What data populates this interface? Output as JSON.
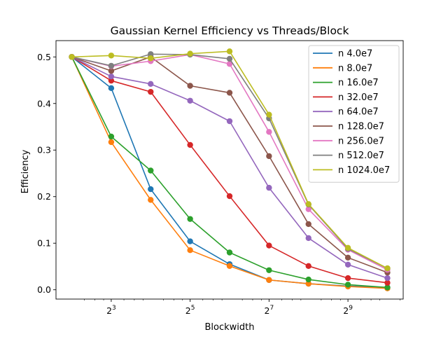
{
  "chart_data": {
    "type": "line",
    "title": "Gaussian Kernel Efficiency vs Threads/Block",
    "xlabel": "Blockwidth",
    "ylabel": "Efficiency",
    "x_scale": "log2",
    "x": [
      4,
      8,
      16,
      32,
      64,
      128,
      256,
      512,
      1024
    ],
    "xlim": [
      4,
      1024
    ],
    "x_ticks": [
      {
        "base": "2",
        "exp": "3",
        "value": 8
      },
      {
        "base": "2",
        "exp": "5",
        "value": 32
      },
      {
        "base": "2",
        "exp": "7",
        "value": 128
      },
      {
        "base": "2",
        "exp": "9",
        "value": 512
      }
    ],
    "ylim": [
      -0.02,
      0.535
    ],
    "y_ticks": [
      {
        "label": "0.0",
        "value": 0.0
      },
      {
        "label": "0.1",
        "value": 0.1
      },
      {
        "label": "0.2",
        "value": 0.2
      },
      {
        "label": "0.3",
        "value": 0.3
      },
      {
        "label": "0.4",
        "value": 0.4
      },
      {
        "label": "0.5",
        "value": 0.5
      }
    ],
    "grid": false,
    "legend_position": "top-right",
    "series": [
      {
        "name": "n 4.0e7",
        "color": "#1f77b4",
        "values": [
          0.5,
          0.433,
          0.216,
          0.104,
          0.055,
          0.021,
          0.013,
          0.008,
          0.005
        ]
      },
      {
        "name": "n 8.0e7",
        "color": "#ff7f0e",
        "values": [
          0.5,
          0.317,
          0.193,
          0.085,
          0.051,
          0.021,
          0.013,
          0.007,
          0.003
        ]
      },
      {
        "name": "n 16.0e7",
        "color": "#2ca02c",
        "values": [
          0.5,
          0.329,
          0.256,
          0.152,
          0.08,
          0.042,
          0.022,
          0.011,
          0.005
        ]
      },
      {
        "name": "n 32.0e7",
        "color": "#d62728",
        "values": [
          0.5,
          0.449,
          0.425,
          0.311,
          0.201,
          0.095,
          0.051,
          0.025,
          0.015
        ]
      },
      {
        "name": "n 64.0e7",
        "color": "#9467bd",
        "values": [
          0.5,
          0.458,
          0.442,
          0.406,
          0.362,
          0.219,
          0.111,
          0.054,
          0.025
        ]
      },
      {
        "name": "n 128.0e7",
        "color": "#8c564b",
        "values": [
          0.5,
          0.47,
          0.5,
          0.438,
          0.423,
          0.287,
          0.141,
          0.069,
          0.037
        ]
      },
      {
        "name": "n 256.0e7",
        "color": "#e377c2",
        "values": [
          0.5,
          0.48,
          0.491,
          0.505,
          0.485,
          0.339,
          0.173,
          0.086,
          0.043
        ]
      },
      {
        "name": "n 512.0e7",
        "color": "#7f7f7f",
        "values": [
          0.5,
          0.481,
          0.506,
          0.505,
          0.496,
          0.368,
          0.183,
          0.088,
          0.046
        ]
      },
      {
        "name": "n 1024.0e7",
        "color": "#bcbd22",
        "values": [
          0.5,
          0.503,
          0.497,
          0.507,
          0.512,
          0.376,
          0.184,
          0.09,
          0.046
        ]
      }
    ]
  }
}
